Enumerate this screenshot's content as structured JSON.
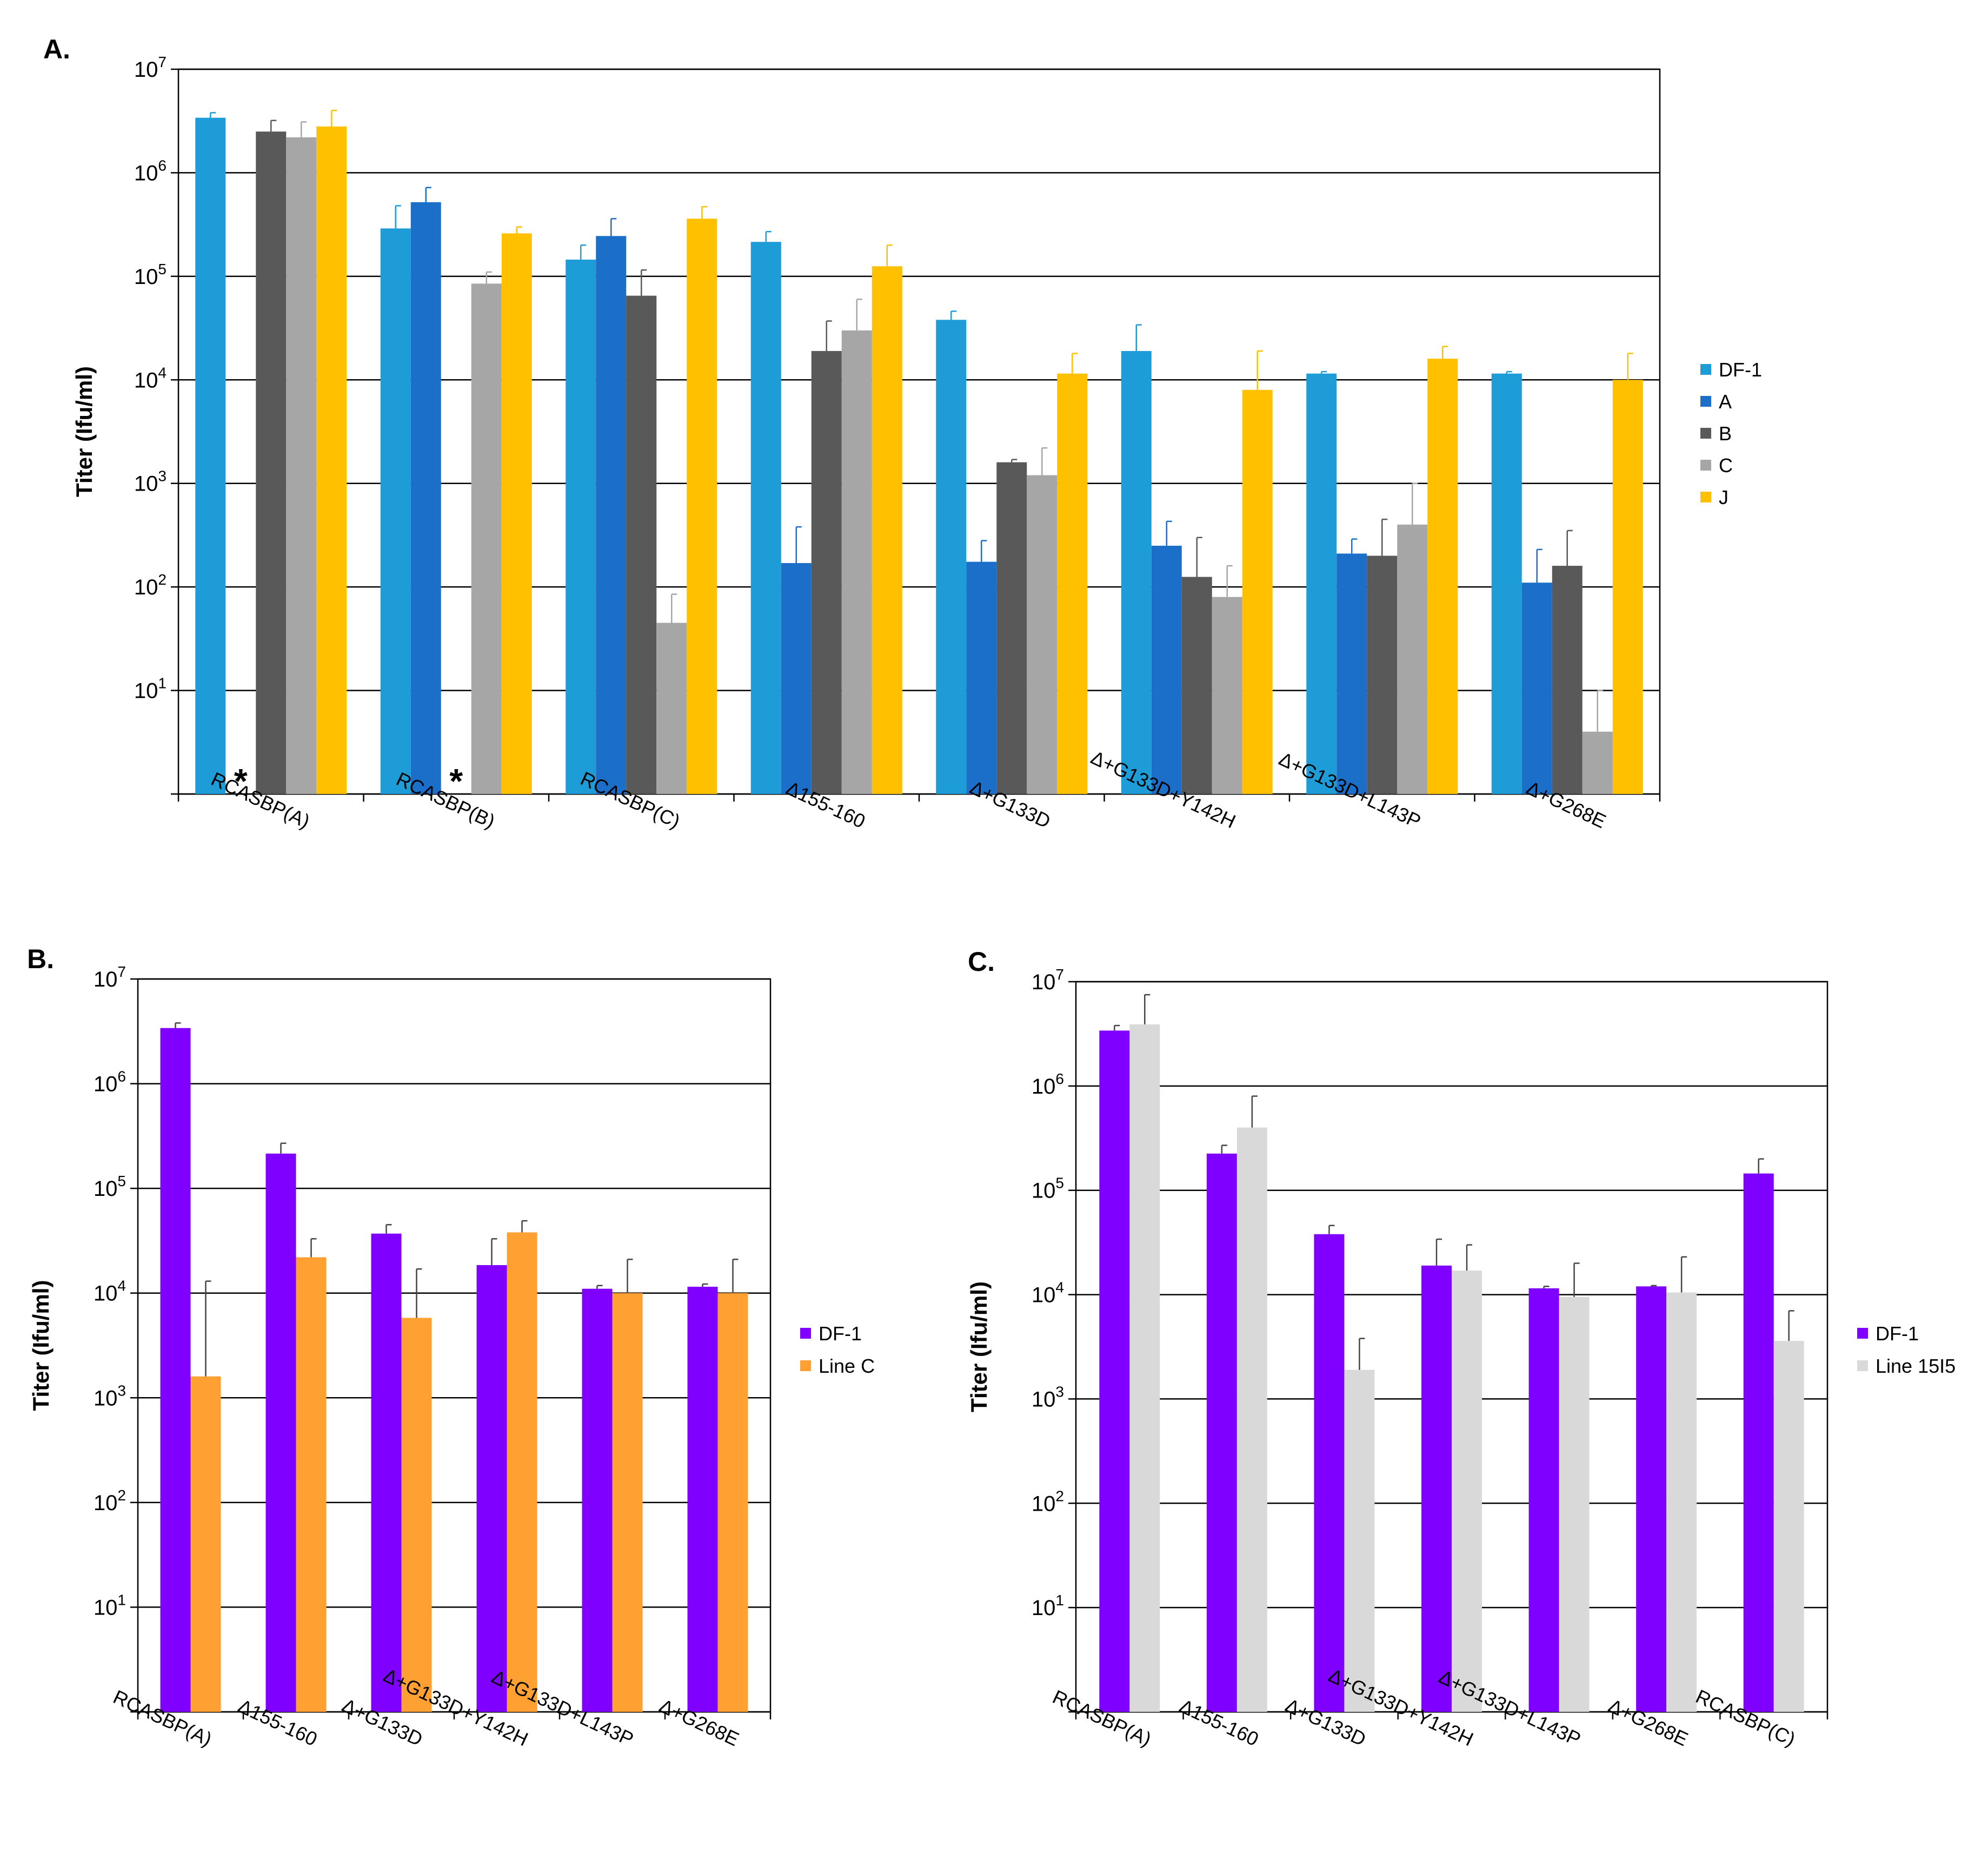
{
  "chart_data": [
    {
      "panel": "A.",
      "type": "bar",
      "yscale": "log",
      "ylabel": "Titer (Ifu/ml)",
      "ylim": [
        1,
        10000000
      ],
      "yticks": [
        "10^7",
        "10^6",
        "10^5",
        "10^4",
        "10^3",
        "10^2",
        "10^1"
      ],
      "categories": [
        "RCASBP(A)",
        "RCASBP(B)",
        "RCASBP(C)",
        "Δ155-160",
        "Δ+G133D",
        "Δ+G133D+Y142H",
        "Δ+G133D+L143P",
        "Δ+G268E"
      ],
      "legend_position": "right",
      "series": [
        {
          "name": "DF-1",
          "color": "#1E9CD7",
          "values": [
            3400000,
            290000,
            145000,
            215000,
            38000,
            19000,
            11500,
            11500
          ],
          "err": [
            3800000,
            480000,
            200000,
            270000,
            46000,
            34000,
            12000,
            12000
          ]
        },
        {
          "name": "A",
          "color": "#1B6FC8",
          "values": [
            null,
            520000,
            245000,
            170,
            175,
            250,
            210,
            110
          ],
          "err": [
            null,
            720000,
            360000,
            380,
            280,
            430,
            290,
            230
          ]
        },
        {
          "name": "B",
          "color": "#595959",
          "values": [
            2500000,
            null,
            65000,
            19000,
            1600,
            125,
            200,
            160
          ],
          "err": [
            3200000,
            null,
            115000,
            37000,
            1700,
            300,
            450,
            350
          ]
        },
        {
          "name": "C",
          "color": "#A6A6A6",
          "values": [
            2200000,
            85000,
            45,
            30000,
            1200,
            80,
            400,
            4
          ],
          "err": [
            3100000,
            110000,
            85,
            60000,
            2200,
            160,
            1000,
            10
          ]
        },
        {
          "name": "J",
          "color": "#FFC000",
          "values": [
            2800000,
            260000,
            360000,
            125000,
            11500,
            8000,
            16000,
            10000
          ],
          "err": [
            4000000,
            300000,
            470000,
            200000,
            18000,
            19000,
            21000,
            18000
          ]
        }
      ],
      "annotations": [
        "*",
        "*"
      ]
    },
    {
      "panel": "B.",
      "type": "bar",
      "yscale": "log",
      "ylabel": "Titer (Ifu/ml)",
      "ylim": [
        1,
        10000000
      ],
      "yticks": [
        "10^7",
        "10^6",
        "10^5",
        "10^4",
        "10^3",
        "10^2",
        "10^1"
      ],
      "categories": [
        "RCASBP(A)",
        "Δ155-160",
        "Δ+G133D",
        "Δ+G133D+Y142H",
        "Δ+G133D+L143P",
        "Δ+G268E"
      ],
      "legend_position": "right",
      "series": [
        {
          "name": "DF-1",
          "color": "#7F00FF",
          "values": [
            3400000,
            215000,
            37000,
            18500,
            11000,
            11500
          ],
          "err": [
            3800000,
            270000,
            45000,
            33000,
            11800,
            12200
          ]
        },
        {
          "name": "Line C",
          "color": "#FFA033",
          "values": [
            1600,
            22000,
            5800,
            38000,
            10000,
            10000
          ],
          "err": [
            13000,
            33000,
            17000,
            49000,
            21000,
            21000
          ]
        }
      ]
    },
    {
      "panel": "C.",
      "type": "bar",
      "yscale": "log",
      "ylabel": "Titer (Ifu/ml)",
      "ylim": [
        1,
        10000000
      ],
      "yticks": [
        "10^7",
        "10^6",
        "10^5",
        "10^4",
        "10^3",
        "10^2",
        "10^1"
      ],
      "categories": [
        "RCASBP(A)",
        "Δ155-160",
        "Δ+G133D",
        "Δ+G133D+Y142H",
        "Δ+G133D+L143P",
        "Δ+G268E",
        "RCASBP(C)"
      ],
      "legend_position": "right",
      "series": [
        {
          "name": "DF-1",
          "color": "#7F00FF",
          "values": [
            3400000,
            225000,
            38000,
            19000,
            11500,
            12000,
            145000
          ],
          "err": [
            3800000,
            270000,
            46000,
            34000,
            12000,
            12200,
            200000
          ]
        },
        {
          "name": "Line 15I5",
          "color": "#D9D9D9",
          "values": [
            3900000,
            400000,
            1900,
            17000,
            9500,
            10500,
            3600
          ],
          "err": [
            7500000,
            800000,
            3800,
            30000,
            20000,
            23000,
            7000
          ]
        }
      ]
    }
  ]
}
